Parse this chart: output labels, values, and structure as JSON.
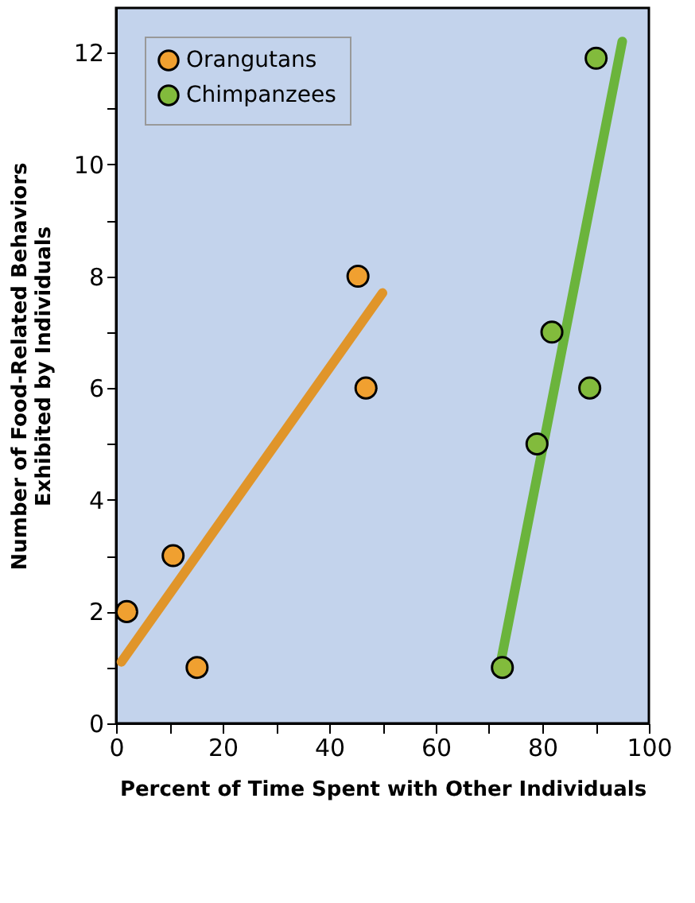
{
  "chart_data": {
    "type": "scatter",
    "xlabel": "Percent of Time Spent with Other Individuals",
    "ylabel": "Number of Food-Related Behaviors\nExhibited by Individuals",
    "series": [
      {
        "name": "Orangutans",
        "color": "#f0a030",
        "x": [
          2,
          10.7,
          15.2,
          45.4,
          46.9
        ],
        "values": [
          2,
          3,
          1,
          8,
          6
        ]
      },
      {
        "name": "Chimpanzees",
        "color": "#82bb3c",
        "x": [
          72.5,
          79,
          81.8,
          88.9,
          90.1
        ],
        "values": [
          1,
          5,
          7,
          6,
          11.9
        ]
      },
      {
        "type": "line",
        "marker": "none",
        "color": "#e0952a",
        "x": [
          1,
          50
        ],
        "values": [
          1.1,
          7.7
        ]
      },
      {
        "type": "line",
        "marker": "none",
        "color": "#6bb43c",
        "x": [
          72,
          95
        ],
        "values": [
          1,
          12.2
        ]
      }
    ],
    "xlim": [
      0,
      100
    ],
    "xticks": [
      0,
      {
        "value": 10,
        "label": null
      },
      20,
      {
        "value": 30,
        "label": null
      },
      40,
      {
        "value": 50,
        "label": null
      },
      60,
      {
        "value": 70,
        "label": null
      },
      80,
      {
        "value": 90,
        "label": null
      },
      100
    ],
    "ylim": [
      0,
      12.8
    ],
    "yticks": [
      0,
      {
        "value": 1,
        "label": null
      },
      2,
      {
        "value": 3,
        "label": null
      },
      4,
      {
        "value": 5,
        "label": null
      },
      6,
      {
        "value": 7,
        "label": null
      },
      8,
      {
        "value": 9,
        "label": null
      },
      10,
      {
        "value": 11,
        "label": null
      },
      12
    ],
    "grid": false,
    "legend": "top left",
    "marker": "circle"
  }
}
